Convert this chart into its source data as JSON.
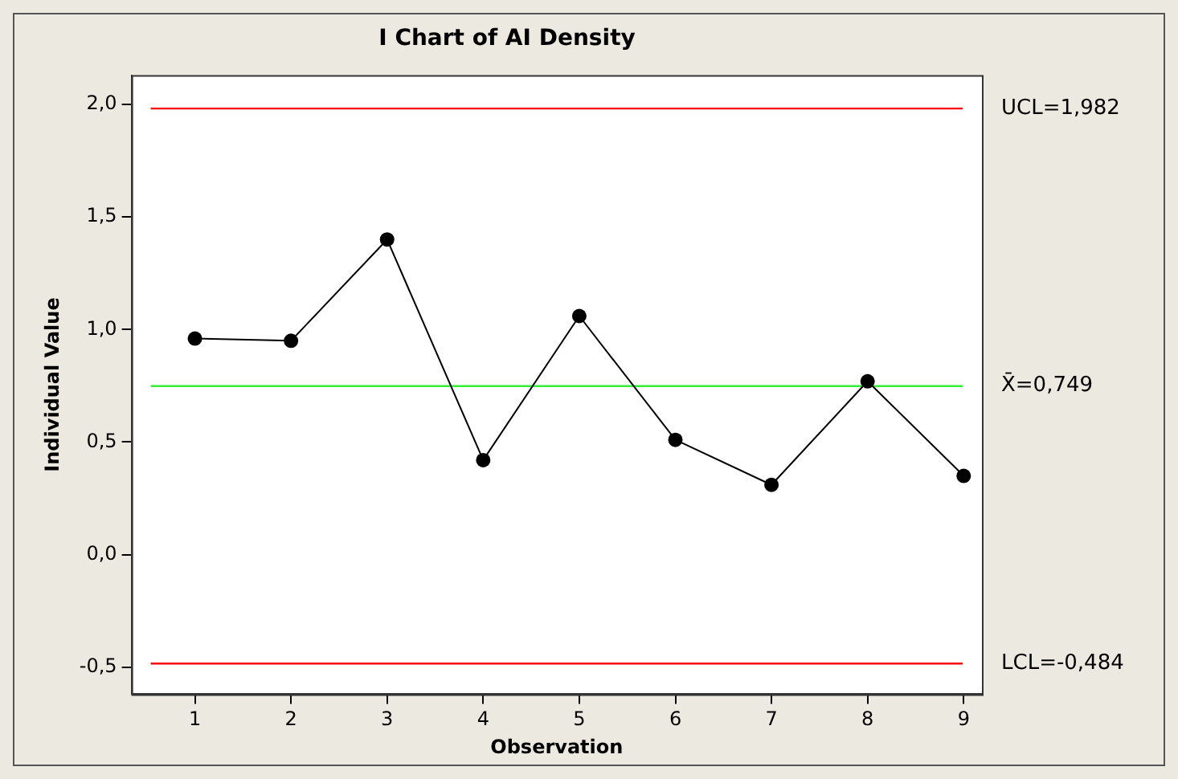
{
  "chart_data": {
    "type": "line",
    "title": "I Chart of AI Density",
    "xlabel": "Observation",
    "ylabel": "Individual Value",
    "x": [
      1,
      2,
      3,
      4,
      5,
      6,
      7,
      8,
      9
    ],
    "series": [
      {
        "color": "#000000",
        "values": [
          0.96,
          0.95,
          1.4,
          0.42,
          1.06,
          0.51,
          0.31,
          0.77,
          0.35
        ]
      }
    ],
    "xlim": [
      0.34,
      9.19
    ],
    "xticks": [
      1,
      2,
      3,
      4,
      5,
      6,
      7,
      8,
      9
    ],
    "ylim": [
      -0.62,
      2.13
    ],
    "yticks": [
      {
        "value": -0.5,
        "label": "-0,5"
      },
      {
        "value": 0,
        "label": "0,0"
      },
      {
        "value": 0.5,
        "label": "0,5"
      },
      {
        "value": 1,
        "label": "1,0"
      },
      {
        "value": 1.5,
        "label": "1,5"
      },
      {
        "value": 2,
        "label": "2,0"
      }
    ],
    "ref_lines": [
      {
        "axis": "y",
        "value": 1.982,
        "label": "UCL=1,982",
        "color": "#ff0000"
      },
      {
        "axis": "y",
        "value": 0.749,
        "label": "X̄=0,749",
        "color": "#33ee33"
      },
      {
        "axis": "y",
        "value": -0.484,
        "label": "LCL=-0,484",
        "color": "#ff0000"
      }
    ],
    "grid": false,
    "legend": false,
    "marker": "circle",
    "line_style": "solid"
  }
}
